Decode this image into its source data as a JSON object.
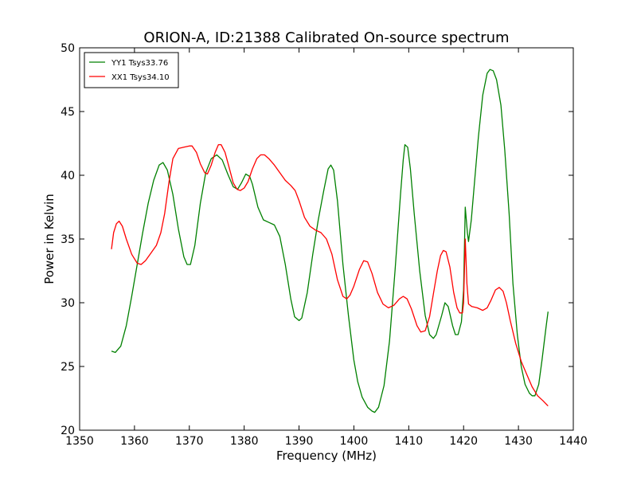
{
  "chart_data": {
    "type": "line",
    "title": "ORION-A, ID:21388 Calibrated On-source spectrum",
    "xlabel": "Frequency (MHz)",
    "ylabel": "Power in Kelvin",
    "xlim": [
      1350,
      1440
    ],
    "ylim": [
      20,
      50
    ],
    "xticks": [
      1350,
      1360,
      1370,
      1380,
      1390,
      1400,
      1410,
      1420,
      1430,
      1440
    ],
    "yticks": [
      20,
      25,
      30,
      35,
      40,
      45,
      50
    ],
    "grid": false,
    "legend_position": "top-left",
    "series": [
      {
        "name": "YY1 Tsys33.76",
        "color": "#008000",
        "points": [
          [
            1355.8,
            26.2
          ],
          [
            1356.5,
            26.1
          ],
          [
            1357.5,
            26.6
          ],
          [
            1358.5,
            28.2
          ],
          [
            1359.5,
            30.5
          ],
          [
            1360.5,
            33.0
          ],
          [
            1361.5,
            35.5
          ],
          [
            1362.5,
            37.8
          ],
          [
            1363.5,
            39.6
          ],
          [
            1364.5,
            40.8
          ],
          [
            1365.2,
            41.0
          ],
          [
            1366.0,
            40.4
          ],
          [
            1367.0,
            38.5
          ],
          [
            1368.0,
            35.8
          ],
          [
            1369.0,
            33.6
          ],
          [
            1369.6,
            33.0
          ],
          [
            1370.2,
            33.0
          ],
          [
            1371.0,
            34.5
          ],
          [
            1372.0,
            37.8
          ],
          [
            1373.0,
            40.2
          ],
          [
            1374.0,
            41.3
          ],
          [
            1375.0,
            41.6
          ],
          [
            1376.0,
            41.2
          ],
          [
            1377.0,
            40.1
          ],
          [
            1378.0,
            39.1
          ],
          [
            1378.8,
            38.9
          ],
          [
            1379.5,
            39.4
          ],
          [
            1380.3,
            40.1
          ],
          [
            1381.0,
            39.9
          ],
          [
            1381.5,
            39.3
          ],
          [
            1382.5,
            37.5
          ],
          [
            1383.5,
            36.5
          ],
          [
            1384.5,
            36.3
          ],
          [
            1385.5,
            36.1
          ],
          [
            1386.5,
            35.2
          ],
          [
            1387.5,
            33.0
          ],
          [
            1388.5,
            30.3
          ],
          [
            1389.2,
            28.9
          ],
          [
            1390.0,
            28.6
          ],
          [
            1390.5,
            28.8
          ],
          [
            1391.5,
            30.8
          ],
          [
            1392.5,
            33.8
          ],
          [
            1393.5,
            36.5
          ],
          [
            1394.5,
            38.8
          ],
          [
            1395.3,
            40.5
          ],
          [
            1395.8,
            40.8
          ],
          [
            1396.3,
            40.4
          ],
          [
            1397.0,
            38.0
          ],
          [
            1398.0,
            33.0
          ],
          [
            1399.0,
            29.0
          ],
          [
            1400.0,
            25.5
          ],
          [
            1400.7,
            23.8
          ],
          [
            1401.5,
            22.6
          ],
          [
            1402.5,
            21.8
          ],
          [
            1403.3,
            21.5
          ],
          [
            1403.8,
            21.4
          ],
          [
            1404.5,
            21.8
          ],
          [
            1405.5,
            23.5
          ],
          [
            1406.5,
            27.0
          ],
          [
            1407.5,
            32.5
          ],
          [
            1408.5,
            38.5
          ],
          [
            1409.0,
            41.2
          ],
          [
            1409.3,
            42.4
          ],
          [
            1409.8,
            42.2
          ],
          [
            1410.3,
            40.5
          ],
          [
            1411.0,
            37.0
          ],
          [
            1412.0,
            32.5
          ],
          [
            1413.0,
            29.0
          ],
          [
            1413.8,
            27.5
          ],
          [
            1414.5,
            27.2
          ],
          [
            1415.0,
            27.5
          ],
          [
            1416.0,
            29.0
          ],
          [
            1416.6,
            30.0
          ],
          [
            1417.2,
            29.7
          ],
          [
            1418.0,
            28.2
          ],
          [
            1418.5,
            27.5
          ],
          [
            1419.0,
            27.5
          ],
          [
            1419.6,
            28.5
          ],
          [
            1420.0,
            31.0
          ],
          [
            1420.3,
            37.5
          ],
          [
            1420.7,
            35.5
          ],
          [
            1420.9,
            34.8
          ],
          [
            1421.4,
            36.5
          ],
          [
            1422.0,
            39.5
          ],
          [
            1422.7,
            43.0
          ],
          [
            1423.5,
            46.3
          ],
          [
            1424.3,
            48.0
          ],
          [
            1424.8,
            48.3
          ],
          [
            1425.4,
            48.2
          ],
          [
            1426.0,
            47.5
          ],
          [
            1426.8,
            45.5
          ],
          [
            1427.5,
            42.0
          ],
          [
            1428.3,
            37.0
          ],
          [
            1429.0,
            31.5
          ],
          [
            1429.8,
            27.5
          ],
          [
            1430.5,
            25.0
          ],
          [
            1431.2,
            23.6
          ],
          [
            1432.0,
            22.9
          ],
          [
            1432.5,
            22.7
          ],
          [
            1433.0,
            22.7
          ],
          [
            1433.7,
            23.6
          ],
          [
            1434.3,
            25.5
          ],
          [
            1435.0,
            28.0
          ],
          [
            1435.4,
            29.3
          ]
        ]
      },
      {
        "name": "XX1 Tsys34.10",
        "color": "#ff0000",
        "points": [
          [
            1355.8,
            34.2
          ],
          [
            1356.2,
            35.5
          ],
          [
            1356.7,
            36.2
          ],
          [
            1357.2,
            36.4
          ],
          [
            1357.8,
            36.0
          ],
          [
            1358.5,
            35.0
          ],
          [
            1359.5,
            33.8
          ],
          [
            1360.5,
            33.1
          ],
          [
            1361.2,
            33.0
          ],
          [
            1362.0,
            33.3
          ],
          [
            1363.0,
            33.9
          ],
          [
            1364.0,
            34.5
          ],
          [
            1364.8,
            35.5
          ],
          [
            1365.5,
            37.0
          ],
          [
            1366.3,
            39.5
          ],
          [
            1367.0,
            41.3
          ],
          [
            1368.0,
            42.1
          ],
          [
            1369.0,
            42.2
          ],
          [
            1370.0,
            42.3
          ],
          [
            1370.5,
            42.3
          ],
          [
            1371.3,
            41.8
          ],
          [
            1372.0,
            40.9
          ],
          [
            1372.8,
            40.2
          ],
          [
            1373.3,
            40.1
          ],
          [
            1374.0,
            40.8
          ],
          [
            1374.7,
            41.8
          ],
          [
            1375.3,
            42.4
          ],
          [
            1375.8,
            42.4
          ],
          [
            1376.5,
            41.8
          ],
          [
            1377.2,
            40.7
          ],
          [
            1378.0,
            39.4
          ],
          [
            1378.7,
            38.9
          ],
          [
            1379.3,
            38.8
          ],
          [
            1380.0,
            39.0
          ],
          [
            1380.7,
            39.5
          ],
          [
            1381.5,
            40.5
          ],
          [
            1382.3,
            41.3
          ],
          [
            1383.0,
            41.6
          ],
          [
            1383.7,
            41.6
          ],
          [
            1384.5,
            41.3
          ],
          [
            1385.5,
            40.8
          ],
          [
            1386.5,
            40.2
          ],
          [
            1387.5,
            39.6
          ],
          [
            1388.5,
            39.2
          ],
          [
            1389.3,
            38.8
          ],
          [
            1390.0,
            38.0
          ],
          [
            1391.0,
            36.7
          ],
          [
            1392.0,
            36.0
          ],
          [
            1393.0,
            35.7
          ],
          [
            1394.0,
            35.5
          ],
          [
            1395.0,
            35.0
          ],
          [
            1396.0,
            33.8
          ],
          [
            1397.0,
            31.8
          ],
          [
            1398.0,
            30.5
          ],
          [
            1398.7,
            30.3
          ],
          [
            1399.3,
            30.6
          ],
          [
            1400.0,
            31.3
          ],
          [
            1401.0,
            32.6
          ],
          [
            1401.8,
            33.3
          ],
          [
            1402.5,
            33.2
          ],
          [
            1403.3,
            32.3
          ],
          [
            1404.3,
            30.8
          ],
          [
            1405.3,
            29.9
          ],
          [
            1406.3,
            29.6
          ],
          [
            1407.3,
            29.8
          ],
          [
            1408.3,
            30.3
          ],
          [
            1409.0,
            30.5
          ],
          [
            1409.7,
            30.3
          ],
          [
            1410.5,
            29.5
          ],
          [
            1411.5,
            28.2
          ],
          [
            1412.2,
            27.7
          ],
          [
            1413.0,
            27.8
          ],
          [
            1413.8,
            28.9
          ],
          [
            1414.5,
            30.7
          ],
          [
            1415.2,
            32.5
          ],
          [
            1415.8,
            33.7
          ],
          [
            1416.3,
            34.1
          ],
          [
            1416.8,
            34.0
          ],
          [
            1417.5,
            32.8
          ],
          [
            1418.2,
            30.8
          ],
          [
            1418.8,
            29.6
          ],
          [
            1419.3,
            29.2
          ],
          [
            1419.8,
            29.2
          ],
          [
            1420.0,
            30.0
          ],
          [
            1420.3,
            35.0
          ],
          [
            1420.6,
            31.5
          ],
          [
            1420.9,
            29.9
          ],
          [
            1421.5,
            29.7
          ],
          [
            1422.5,
            29.6
          ],
          [
            1423.5,
            29.4
          ],
          [
            1424.3,
            29.6
          ],
          [
            1425.0,
            30.2
          ],
          [
            1425.8,
            31.0
          ],
          [
            1426.5,
            31.2
          ],
          [
            1427.2,
            30.9
          ],
          [
            1427.8,
            30.0
          ],
          [
            1428.5,
            28.6
          ],
          [
            1429.5,
            26.8
          ],
          [
            1430.5,
            25.4
          ],
          [
            1431.5,
            24.4
          ],
          [
            1432.5,
            23.4
          ],
          [
            1433.5,
            22.7
          ],
          [
            1434.5,
            22.3
          ],
          [
            1435.4,
            21.9
          ]
        ]
      }
    ]
  }
}
